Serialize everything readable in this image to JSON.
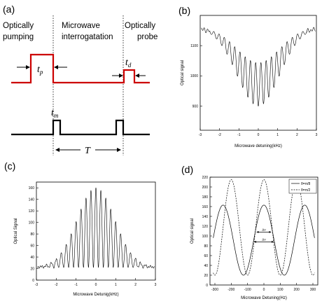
{
  "figure": {
    "panel_labels": [
      "(a)",
      "(b)",
      "(c)",
      "(d)"
    ]
  },
  "panel_a": {
    "labels": {
      "optically_pumping": [
        "Optically",
        "pumping"
      ],
      "microwave_interrogation": [
        "Microwave",
        "interrogatation"
      ],
      "optically_probe": [
        "Optically",
        "probe"
      ]
    },
    "symbols": {
      "tp": {
        "main": "t",
        "sub": "p"
      },
      "td": {
        "main": "t",
        "sub": "d"
      },
      "tm": {
        "main": "t",
        "sub": "m"
      },
      "T": "T"
    },
    "colors": {
      "optical_pulses": "#cc0000",
      "microwave_pulses": "#000000"
    }
  },
  "chart_data": [
    {
      "panel": "(b)",
      "type": "line",
      "xlabel": "Microwave detuning(kHz)",
      "ylabel": "Optical signal",
      "xlim": [
        -3,
        3
      ],
      "ylim": [
        820,
        1200
      ],
      "xticks": [
        -3,
        -2,
        -1,
        0,
        1,
        2,
        3
      ],
      "yticks": [
        900,
        1000,
        1100
      ],
      "model": {
        "baseline": 1160,
        "envelope_depth": 260,
        "envelope_sigma_khz": 1.1,
        "fringe_period_khz": 0.27
      },
      "grid": false
    },
    {
      "panel": "(c)",
      "type": "line",
      "xlabel": "Microwave Detunig(kHz)",
      "ylabel": "Optical Signal",
      "xlim": [
        -3,
        3
      ],
      "ylim": [
        0,
        170
      ],
      "xticks": [
        -3,
        -2,
        -1,
        0,
        1,
        2,
        3
      ],
      "yticks": [
        0,
        20,
        40,
        60,
        80,
        100,
        120,
        140,
        160
      ],
      "model": {
        "baseline": 22,
        "envelope_peak": 160,
        "envelope_sigma_khz": 0.95,
        "fringe_period_khz": 0.25
      },
      "grid": false
    },
    {
      "panel": "(d)",
      "type": "line",
      "xlabel": "Microwave Detuning(Hz)",
      "ylabel": "Optical signal",
      "xlim": [
        -330,
        330
      ],
      "ylim": [
        0,
        220
      ],
      "xticks": [
        -300,
        -200,
        -100,
        0,
        100,
        200,
        300
      ],
      "yticks": [
        0,
        20,
        40,
        60,
        80,
        100,
        120,
        140,
        160,
        180,
        200,
        220
      ],
      "legend_position": "top-right",
      "series": [
        {
          "name": "θ=π/8",
          "style": "solid",
          "min": 20,
          "max": 163,
          "period_hz": 250
        },
        {
          "name": "θ=π/2",
          "style": "dashed",
          "min": 20,
          "max": 215,
          "period_hz": 200
        }
      ],
      "annotations": [
        {
          "text": "Δν",
          "y": 108,
          "from": -45,
          "to": 45
        },
        {
          "text": "Δν",
          "y": 88,
          "from": -60,
          "to": 60
        }
      ],
      "grid": false
    }
  ]
}
